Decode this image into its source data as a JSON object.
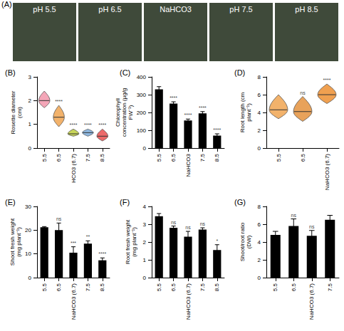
{
  "panel_a": {
    "title": "(A)",
    "labels": [
      "pH 5.5",
      "pH 6.5",
      "NaHCO3",
      "pH 7.5",
      "pH 8.5"
    ]
  },
  "chart_data": [
    {
      "title": "(B)",
      "type": "violin",
      "y_label": "Rosette diameter (cm)",
      "categories": [
        "5.5",
        "6.5",
        "HCO3 (6.7)",
        "7.5",
        "8.5"
      ],
      "values": [
        2.0,
        1.3,
        0.6,
        0.65,
        0.5
      ],
      "min": [
        1.7,
        0.9,
        0.5,
        0.5,
        0.3
      ],
      "max": [
        2.4,
        1.8,
        0.8,
        0.8,
        0.8
      ],
      "colors": [
        "#f4a6b8",
        "#f2b26b",
        "#c9d65a",
        "#8fb8e0",
        "#ec6a6a"
      ],
      "annotations": [
        null,
        "****",
        "****",
        "****",
        "****"
      ],
      "ylim": [
        0,
        3
      ],
      "yticks": [
        0,
        1,
        2,
        3
      ],
      "grid": false
    },
    {
      "title": "(C)",
      "type": "bar",
      "y_label": "Chlorophyll concentration (µg/g FW⁻¹)",
      "categories": [
        "5.5",
        "6.5",
        "NaHCO3",
        "7.5",
        "8.5"
      ],
      "values": [
        330,
        250,
        155,
        195,
        70
      ],
      "errors": [
        15,
        10,
        8,
        10,
        10
      ],
      "color": "#000000",
      "annotations": [
        null,
        "****",
        "****",
        "****",
        "****"
      ],
      "ylim": [
        0,
        400
      ],
      "yticks": [
        0,
        100,
        200,
        300,
        400
      ],
      "grid": false
    },
    {
      "title": "(D)",
      "type": "violin",
      "y_label": "Root length (cm plant⁻¹)",
      "categories": [
        "5.5",
        "6.5",
        "NaHCO3 (6.7)"
      ],
      "values": [
        4.3,
        4.1,
        6.0
      ],
      "min": [
        3.3,
        3.0,
        5.0
      ],
      "max": [
        6.0,
        5.8,
        7.2
      ],
      "colors": [
        "#f2b26b",
        "#e8a25a",
        "#f0a050"
      ],
      "annotations": [
        null,
        "ns",
        "****"
      ],
      "ylim": [
        0,
        8
      ],
      "yticks": [
        0,
        2,
        4,
        6,
        8
      ],
      "grid": false
    },
    {
      "title": "(E)",
      "type": "bar",
      "y_label": "Shoot fresh weight (mg plant⁻¹)",
      "categories": [
        "5.5",
        "6.5",
        "NaHCO3 (6.7)",
        "7.5",
        "8.5"
      ],
      "values": [
        21.2,
        20,
        10.5,
        14.3,
        7.3
      ],
      "errors": [
        0.3,
        3,
        2.5,
        1.2,
        1
      ],
      "color": "#000000",
      "annotations": [
        null,
        "ns",
        "***",
        "**",
        "****"
      ],
      "ylim": [
        0,
        30
      ],
      "yticks": [
        0,
        10,
        20,
        30
      ],
      "grid": false
    },
    {
      "title": "(F)",
      "type": "bar",
      "y_label": "Root fresh weight (mg plant⁻¹)",
      "categories": [
        "5.5",
        "6.5",
        "NaHCO3 (6.7)",
        "7.5",
        "8.5"
      ],
      "values": [
        3.45,
        2.8,
        2.3,
        2.7,
        1.55
      ],
      "errors": [
        0.15,
        0.1,
        0.3,
        0.1,
        0.3
      ],
      "color": "#000000",
      "annotations": [
        null,
        "ns",
        "ns",
        "ns",
        "*"
      ],
      "ylim": [
        0,
        4
      ],
      "yticks": [
        0,
        1,
        2,
        3,
        4
      ],
      "grid": false
    },
    {
      "title": "(G)",
      "type": "bar",
      "y_label": "Shoot/root ratio (DW)",
      "categories": [
        "5.5",
        "6.5",
        "NaHCO3 (6.7)",
        "7.5"
      ],
      "values": [
        4.8,
        5.8,
        4.7,
        6.5
      ],
      "errors": [
        0.4,
        0.8,
        0.6,
        0.5
      ],
      "color": "#000000",
      "annotations": [
        null,
        "ns",
        "ns",
        null
      ],
      "ylim": [
        0,
        8
      ],
      "yticks": [
        0,
        2,
        4,
        6,
        8
      ],
      "grid": false
    }
  ]
}
